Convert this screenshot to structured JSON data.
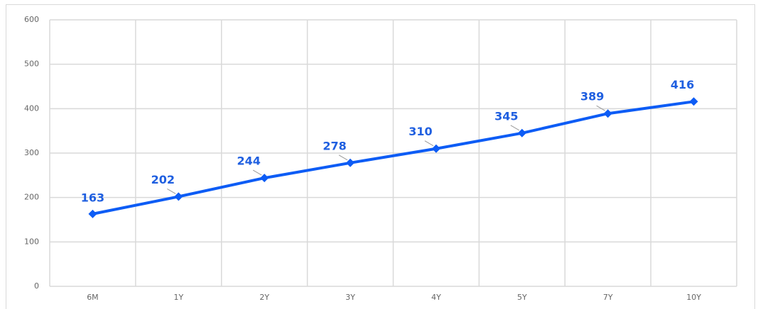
{
  "chart_data": {
    "type": "line",
    "categories": [
      "6M",
      "1Y",
      "2Y",
      "3Y",
      "4Y",
      "5Y",
      "7Y",
      "10Y"
    ],
    "series": [
      {
        "color": "#0d5cf5",
        "values": [
          163,
          202,
          244,
          278,
          310,
          345,
          389,
          416
        ]
      }
    ],
    "ylim": [
      0,
      600
    ],
    "yticks": [
      0,
      100,
      200,
      300,
      400,
      500,
      600
    ],
    "grid": true
  }
}
